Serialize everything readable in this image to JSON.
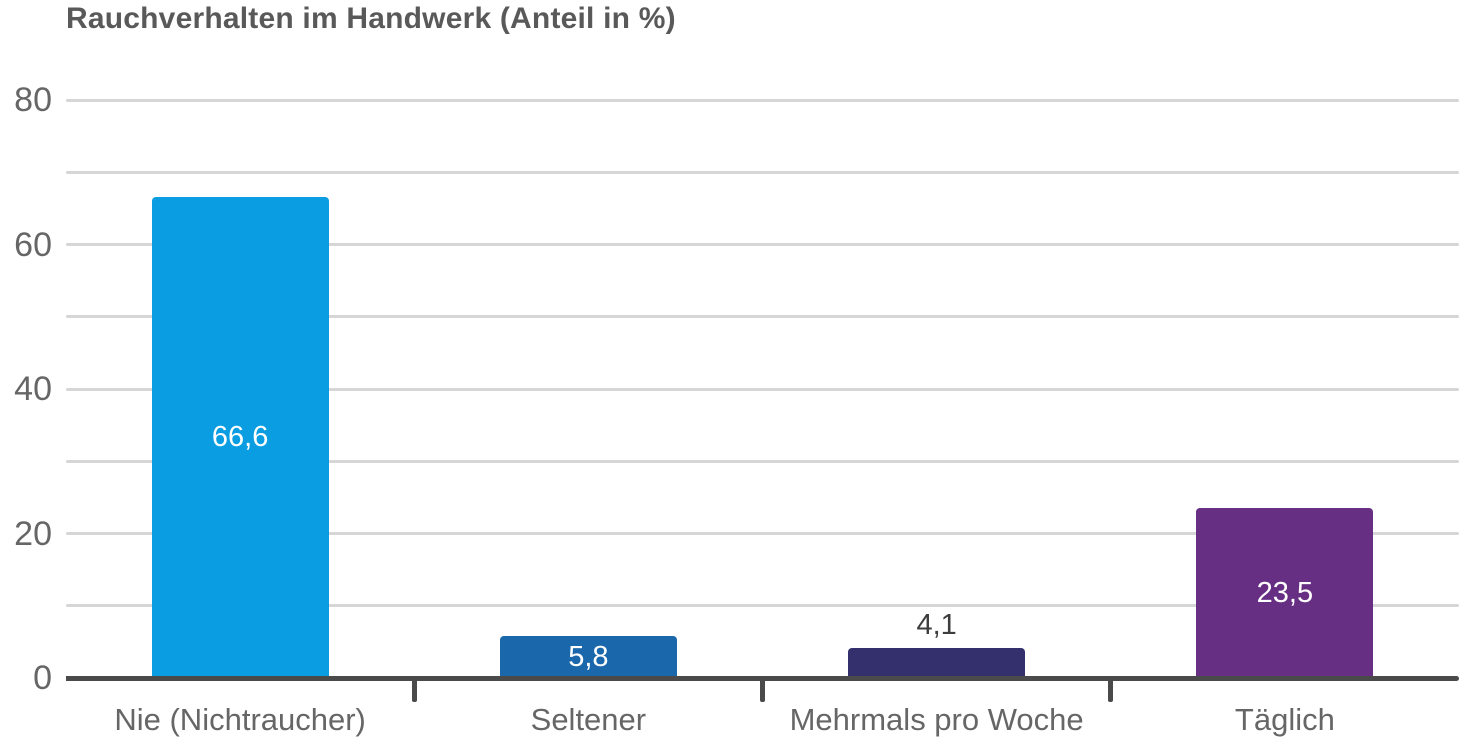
{
  "chart_data": {
    "type": "bar",
    "title": "Rauchverhalten im Handwerk (Anteil in %)",
    "categories": [
      "Nie (Nichtraucher)",
      "Seltener",
      "Mehrmals pro Woche",
      "Täglich"
    ],
    "values": [
      66.6,
      5.8,
      4.1,
      23.5
    ],
    "value_labels": [
      "66,6",
      "5,8",
      "4,1",
      "23,5"
    ],
    "bar_colors": [
      "#0a9de2",
      "#1b67ab",
      "#34306e",
      "#672f83"
    ],
    "ylim": [
      0,
      80
    ],
    "yticks": [
      0,
      20,
      40,
      60,
      80
    ],
    "ytick_labels": [
      "0",
      "20",
      "40",
      "60",
      "80"
    ],
    "grid_interval": 10,
    "grid": "on",
    "legend": "none",
    "colors": {
      "title": "#595959",
      "axis_labels": "#666666",
      "gridline": "#d6d6d6",
      "axis_line": "#4a4a4a",
      "value_label_inside": "#ffffff",
      "value_label_outside": "#3d3d3d"
    }
  }
}
